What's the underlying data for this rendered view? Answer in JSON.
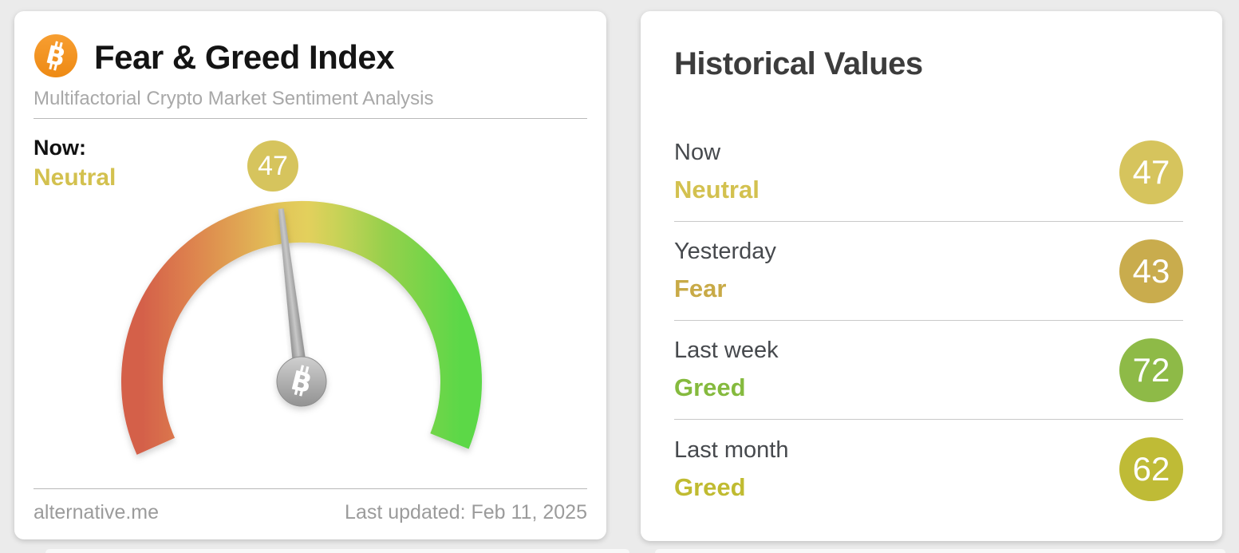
{
  "page": {
    "background_color": "#ebebeb"
  },
  "fear_greed_card": {
    "title": "Fear & Greed Index",
    "subtitle": "Multifactorial Crypto Market Sentiment Analysis",
    "now_label": "Now:",
    "now_sentiment": "Neutral",
    "now_sentiment_color": "#d3c14f",
    "now_value": "47",
    "now_value_badge_color": "#d6c45d",
    "footer_left": "alternative.me",
    "footer_right": "Last updated: Feb 11, 2025",
    "logo_color": "#f2921e"
  },
  "historical_card": {
    "title": "Historical Values",
    "rows": [
      {
        "label": "Now",
        "sentiment": "Neutral",
        "value": "47",
        "sentiment_color": "#d3c14f",
        "badge_color": "#d6c45d"
      },
      {
        "label": "Yesterday",
        "sentiment": "Fear",
        "value": "43",
        "sentiment_color": "#c8aa47",
        "badge_color": "#c9ac4d"
      },
      {
        "label": "Last week",
        "sentiment": "Greed",
        "value": "72",
        "sentiment_color": "#85ba3e",
        "badge_color": "#8eba47"
      },
      {
        "label": "Last month",
        "sentiment": "Greed",
        "value": "62",
        "sentiment_color": "#c0bb31",
        "badge_color": "#bfbb36"
      }
    ]
  },
  "chart_data": {
    "type": "gauge",
    "title": "Fear & Greed Index",
    "value": 47,
    "min": 0,
    "max": 100,
    "classification": "Neutral",
    "arc_span_degrees": 226,
    "scale_colors": [
      "#d4604a",
      "#e0a452",
      "#e3d05c",
      "#97d04c",
      "#5bd847"
    ],
    "history": [
      {
        "period": "Now",
        "value": 47,
        "classification": "Neutral"
      },
      {
        "period": "Yesterday",
        "value": 43,
        "classification": "Fear"
      },
      {
        "period": "Last week",
        "value": 72,
        "classification": "Greed"
      },
      {
        "period": "Last month",
        "value": 62,
        "classification": "Greed"
      }
    ]
  }
}
